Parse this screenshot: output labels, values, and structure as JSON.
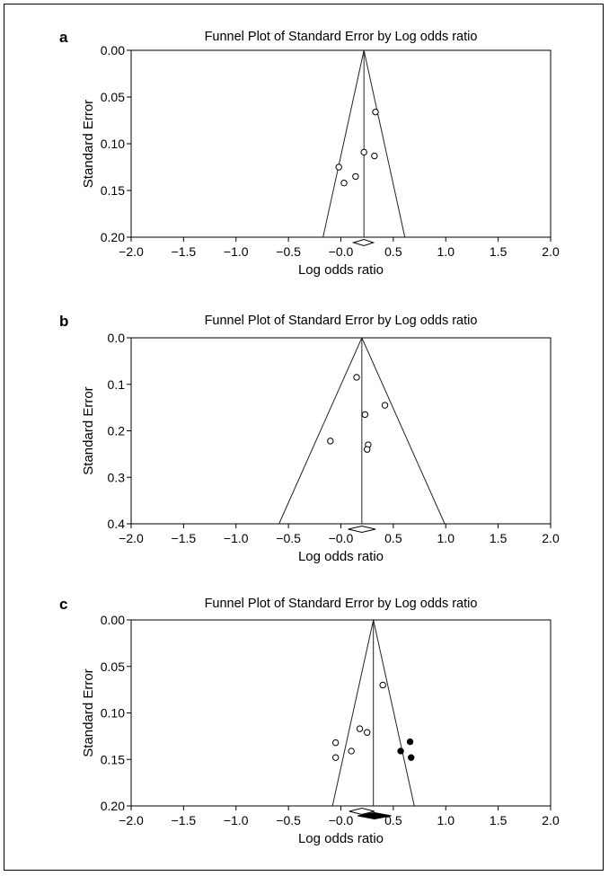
{
  "chart_data": [
    {
      "type": "scatter",
      "panel": "a",
      "title": "Funnel Plot of Standard Error by Log odds ratio",
      "xlabel": "Log odds ratio",
      "ylabel": "Standard Error",
      "xlim": [
        -2.0,
        2.0
      ],
      "ylim": [
        0.0,
        0.2
      ],
      "y_inverted": true,
      "x_ticks": [
        "−2.0",
        "−1.5",
        "−1.0",
        "−0.5",
        "−0.0",
        "0.5",
        "1.0",
        "1.5",
        "2.0"
      ],
      "y_ticks": [
        "0.00",
        "0.05",
        "0.10",
        "0.15",
        "0.20"
      ],
      "pooled_effect": 0.22,
      "funnel_base": [
        -0.17,
        0.61
      ],
      "summary_diamonds": [
        {
          "center": 0.22,
          "lower": 0.12,
          "upper": 0.31,
          "filled": false
        }
      ],
      "series": [
        {
          "filled": false,
          "points": [
            [
              0.33,
              0.066
            ],
            [
              0.22,
              0.109
            ],
            [
              0.32,
              0.113
            ],
            [
              -0.02,
              0.125
            ],
            [
              0.14,
              0.135
            ],
            [
              0.03,
              0.142
            ]
          ]
        }
      ]
    },
    {
      "type": "scatter",
      "panel": "b",
      "title": "Funnel Plot of Standard Error by Log odds ratio",
      "xlabel": "Log odds ratio",
      "ylabel": "Standard Error",
      "xlim": [
        -2.0,
        2.0
      ],
      "ylim": [
        0.0,
        0.4
      ],
      "y_inverted": true,
      "x_ticks": [
        "−2.0",
        "−1.5",
        "−1.0",
        "−0.5",
        "−0.0",
        "0.5",
        "1.0",
        "1.5",
        "2.0"
      ],
      "y_ticks": [
        "0.0",
        "0.1",
        "0.2",
        "0.3",
        "0.4"
      ],
      "pooled_effect": 0.2,
      "funnel_base": [
        -0.59,
        0.99
      ],
      "summary_diamonds": [
        {
          "center": 0.2,
          "lower": 0.07,
          "upper": 0.33,
          "filled": false
        }
      ],
      "series": [
        {
          "filled": false,
          "points": [
            [
              0.15,
              0.085
            ],
            [
              0.42,
              0.145
            ],
            [
              0.23,
              0.165
            ],
            [
              -0.1,
              0.222
            ],
            [
              0.26,
              0.23
            ],
            [
              0.25,
              0.24
            ]
          ]
        }
      ]
    },
    {
      "type": "scatter",
      "panel": "c",
      "title": "Funnel Plot of Standard Error by Log odds ratio",
      "xlabel": "Log odds ratio",
      "ylabel": "Standard Error",
      "xlim": [
        -2.0,
        2.0
      ],
      "ylim": [
        0.0,
        0.2
      ],
      "y_inverted": true,
      "x_ticks": [
        "−2.0",
        "−1.5",
        "−1.0",
        "−0.5",
        "−0.0",
        "0.5",
        "1.0",
        "1.5",
        "2.0"
      ],
      "y_ticks": [
        "0.00",
        "0.05",
        "0.10",
        "0.15",
        "0.20"
      ],
      "pooled_effect": 0.31,
      "funnel_base": [
        -0.08,
        0.7
      ],
      "summary_diamonds": [
        {
          "center": 0.2,
          "lower": 0.08,
          "upper": 0.32,
          "filled": false
        },
        {
          "center": 0.32,
          "lower": 0.16,
          "upper": 0.48,
          "filled": true
        }
      ],
      "series": [
        {
          "filled": false,
          "points": [
            [
              0.4,
              0.07
            ],
            [
              0.18,
              0.117
            ],
            [
              0.25,
              0.121
            ],
            [
              -0.05,
              0.132
            ],
            [
              0.1,
              0.141
            ],
            [
              -0.05,
              0.148
            ]
          ]
        },
        {
          "filled": true,
          "points": [
            [
              0.66,
              0.131
            ],
            [
              0.57,
              0.141
            ],
            [
              0.67,
              0.148
            ]
          ]
        }
      ]
    }
  ]
}
